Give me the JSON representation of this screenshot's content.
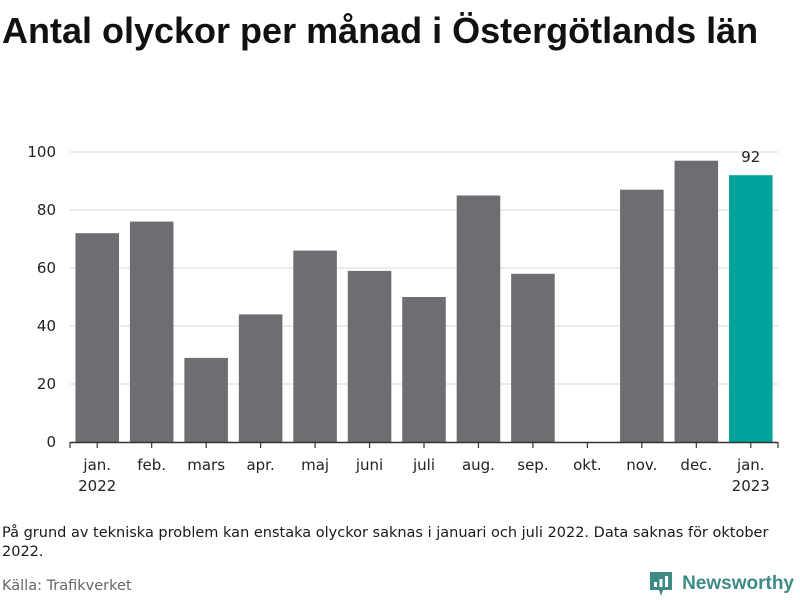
{
  "title": "Antal olyckor per månad i Östergötlands län",
  "note": "På grund av tekniska problem kan enstaka olyckor saknas i januari och juli 2022. Data saknas för oktober 2022.",
  "source": "Källa: Trafikverket",
  "brand": {
    "name": "Newsworthy",
    "icon": "newsworthy-logo-icon",
    "color": "#3d8a87"
  },
  "colors": {
    "bar": "#6e6d72",
    "highlight": "#00a39b",
    "grid": "#d9d9d9",
    "axis": "#333333"
  },
  "chart_data": {
    "type": "bar",
    "title": "Antal olyckor per månad i Östergötlands län",
    "xlabel": "",
    "ylabel": "",
    "ylim": [
      0,
      100
    ],
    "yticks": [
      0,
      20,
      40,
      60,
      80,
      100
    ],
    "grid": true,
    "categories": [
      "jan. 2022",
      "feb.",
      "mars",
      "apr.",
      "maj",
      "juni",
      "juli",
      "aug.",
      "sep.",
      "okt.",
      "nov.",
      "dec.",
      "jan. 2023"
    ],
    "tick_labels": [
      [
        "jan.",
        "2022"
      ],
      [
        "feb."
      ],
      [
        "mars"
      ],
      [
        "apr."
      ],
      [
        "maj"
      ],
      [
        "juni"
      ],
      [
        "juli"
      ],
      [
        "aug."
      ],
      [
        "sep."
      ],
      [
        "okt."
      ],
      [
        "nov."
      ],
      [
        "dec."
      ],
      [
        "jan.",
        "2023"
      ]
    ],
    "values": [
      72,
      76,
      29,
      44,
      66,
      59,
      50,
      85,
      58,
      null,
      87,
      97,
      92
    ],
    "highlight_index": 12,
    "data_labels": [
      {
        "index": 12,
        "text": "92"
      }
    ]
  }
}
